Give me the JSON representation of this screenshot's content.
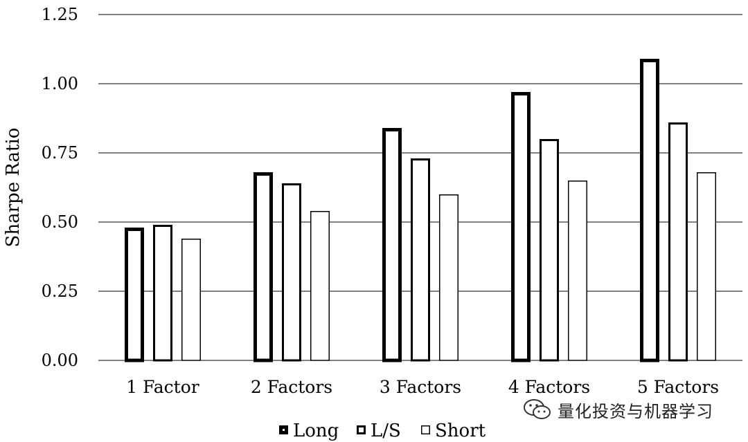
{
  "chart_data": {
    "type": "bar",
    "categories": [
      "1 Factor",
      "2 Factors",
      "3 Factors",
      "4 Factors",
      "5 Factors"
    ],
    "series": [
      {
        "name": "Long",
        "values": [
          0.48,
          0.68,
          0.84,
          0.97,
          1.09
        ]
      },
      {
        "name": "L/S",
        "values": [
          0.49,
          0.64,
          0.73,
          0.8,
          0.86
        ]
      },
      {
        "name": "Short",
        "values": [
          0.44,
          0.54,
          0.6,
          0.65,
          0.68
        ]
      }
    ],
    "ylabel": "Sharpe Ratio",
    "ylim": [
      0,
      1.25
    ],
    "yticks": [
      "0.00",
      "0.25",
      "0.50",
      "0.75",
      "1.00",
      "1.25"
    ],
    "grid": true,
    "legend_position": "bottom",
    "series_styles": {
      "Long": "thick-outline",
      "L/S": "medium-outline",
      "Short": "thin-outline"
    }
  },
  "watermark": {
    "text": "量化投资与机器学习",
    "icon": "wechat-icon"
  }
}
